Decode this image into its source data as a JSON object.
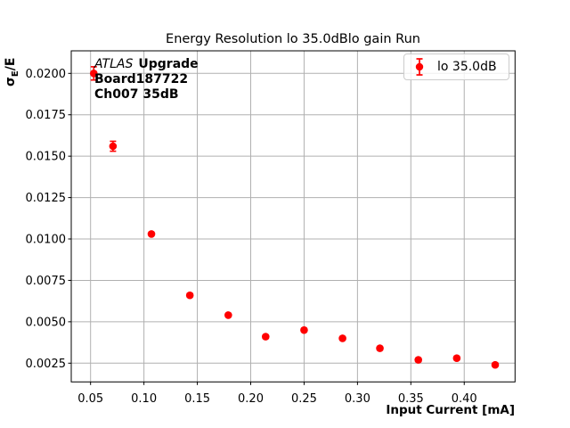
{
  "chart_data": {
    "type": "scatter",
    "title": "Energy Resolution lo 35.0dBlo gain Run",
    "xlabel": "Input Current [mA]",
    "ylabel": "σE/E",
    "ylabel_sigma": "σ",
    "ylabel_sub": "E",
    "ylabel_rest": "/E",
    "annotation": {
      "atlas": "ATLAS",
      "upgrade": "Upgrade",
      "board": "Board187722",
      "channel": "Ch007 35dB"
    },
    "legend": {
      "label": "lo 35.0dB",
      "position": "upper right"
    },
    "series": [
      {
        "name": "lo 35.0dB",
        "color": "#ff0000",
        "x": [
          0.053,
          0.071,
          0.107,
          0.143,
          0.179,
          0.214,
          0.25,
          0.286,
          0.321,
          0.357,
          0.393,
          0.429
        ],
        "y": [
          0.02,
          0.0156,
          0.0103,
          0.0066,
          0.0054,
          0.0041,
          0.0045,
          0.004,
          0.0034,
          0.0027,
          0.0028,
          0.0024
        ],
        "yerr": [
          0.0004,
          0.0003,
          0.0001,
          0.0001,
          0.0001,
          0.0001,
          0.0001,
          0.0001,
          0.0001,
          0.0001,
          0.0001,
          0.0001
        ]
      }
    ],
    "x_ticks": [
      "0.05",
      "0.10",
      "0.15",
      "0.20",
      "0.25",
      "0.30",
      "0.35",
      "0.40"
    ],
    "y_ticks": [
      "0.0025",
      "0.0050",
      "0.0075",
      "0.0100",
      "0.0125",
      "0.0150",
      "0.0175",
      "0.0200"
    ],
    "xlim": [
      0.0319,
      0.4476
    ],
    "ylim": [
      0.001369,
      0.021362
    ],
    "grid": true,
    "colors": {
      "marker": "#ff0000",
      "grid": "#b0b0b0",
      "spine": "#000000",
      "legend_border": "#cccccc"
    }
  }
}
